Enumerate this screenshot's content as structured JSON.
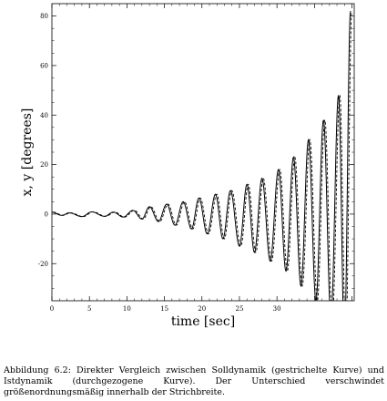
{
  "chart_data": {
    "type": "line",
    "title": "",
    "xlabel": "time [sec]",
    "ylabel": "x, y [degrees]",
    "xlim": [
      0,
      40.3
    ],
    "ylim": [
      -35,
      85
    ],
    "x_ticks": [
      0,
      5,
      10,
      15,
      20,
      25,
      30,
      35,
      40
    ],
    "x_tick_labels": [
      "0",
      "5",
      "10",
      "15",
      "20",
      "25",
      "30",
      "",
      ""
    ],
    "y_ticks": [
      -20,
      0,
      20,
      40,
      60,
      80
    ],
    "y_tick_labels": [
      "-20",
      "0",
      "20",
      "40",
      "60",
      "80"
    ],
    "grid": false,
    "series": [
      {
        "style": "solid",
        "description_from_caption": "Istdynamik",
        "envelope_peak_times": [
          0,
          2.3,
          5.3,
          8.2,
          10.8,
          13,
          15.3,
          17.5,
          19.6,
          21.8,
          23.8,
          26,
          28,
          30.2,
          32.2,
          34.2,
          36.2,
          38.2,
          39.8
        ],
        "envelope_peak_values": [
          0.8,
          0.5,
          0.9,
          0.8,
          1.5,
          3,
          4,
          5,
          6.5,
          8,
          9.5,
          12,
          14.5,
          18,
          23,
          30,
          38,
          48,
          82
        ],
        "envelope_trough_times": [
          1.3,
          4,
          7,
          9.5,
          12,
          14.2,
          16.4,
          18.6,
          20.7,
          22.8,
          25,
          27,
          29.1,
          31.2,
          33.2,
          35.2,
          37.2,
          39
        ],
        "envelope_trough_values": [
          -0.5,
          -1,
          -0.9,
          -1.2,
          -2,
          -3,
          -4.5,
          -6,
          -8,
          -10,
          -13,
          -15.5,
          -19,
          -23,
          -29,
          -35,
          -42,
          -50
        ]
      },
      {
        "style": "dashed",
        "description_from_caption": "Solldynamik"
      }
    ]
  },
  "caption": "Abbildung 6.2: Direkter Vergleich zwischen Solldynamik (gestrichelte Kurve) und Istdynamik (durchgezogene Kurve). Der Unterschied verschwindet größenordnungsmäßig innerhalb der Strichbreite."
}
